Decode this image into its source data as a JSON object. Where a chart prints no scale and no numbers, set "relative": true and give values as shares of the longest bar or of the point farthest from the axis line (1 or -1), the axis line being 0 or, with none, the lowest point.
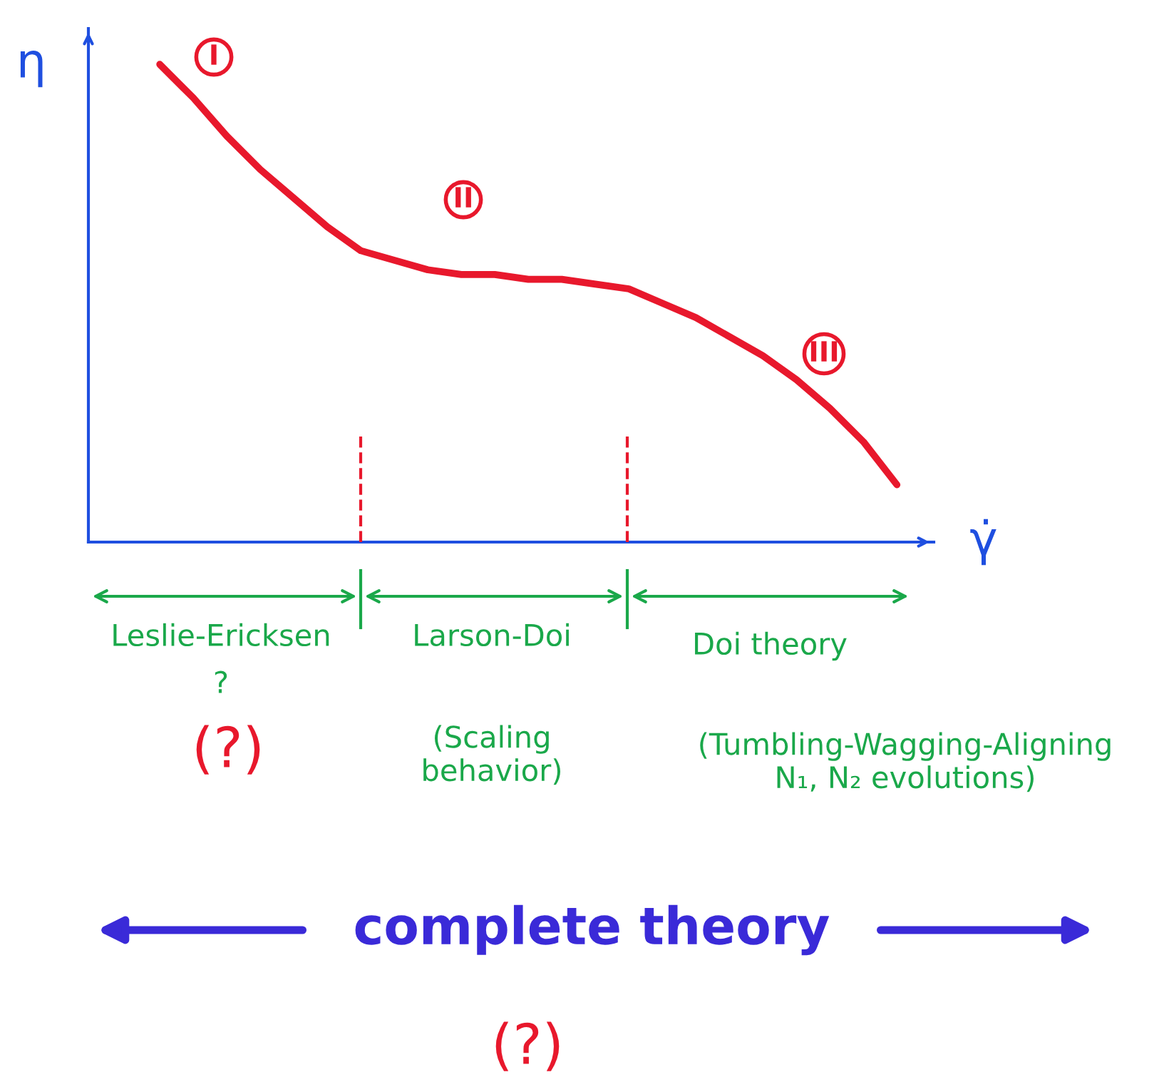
{
  "chart_data": {
    "type": "line",
    "relative": true,
    "xlabel": "γ̇",
    "ylabel": "η",
    "categories": [
      null,
      null,
      null,
      null,
      null,
      null,
      null,
      null,
      null,
      null,
      null,
      null,
      null,
      null,
      null,
      null,
      null,
      null,
      null,
      null,
      null,
      null,
      null
    ],
    "series": [
      {
        "color": "#e8182c",
        "values": [
          1.0,
          0.93,
          0.85,
          0.78,
          0.72,
          0.66,
          0.61,
          0.59,
          0.57,
          0.56,
          0.56,
          0.55,
          0.55,
          0.54,
          0.53,
          0.5,
          0.47,
          0.43,
          0.39,
          0.34,
          0.28,
          0.21,
          0.12
        ]
      }
    ],
    "annotations": [
      "I",
      "II",
      "III",
      "Leslie-Ericksen",
      "?",
      "(?)",
      "Larson-Doi",
      "Doi theory",
      "(Scaling behavior)",
      "(Tumbling-Wagging-Aligning N₁, N₂ evolutions)",
      "complete theory",
      "(?)"
    ],
    "legend": false,
    "grid": false
  }
}
